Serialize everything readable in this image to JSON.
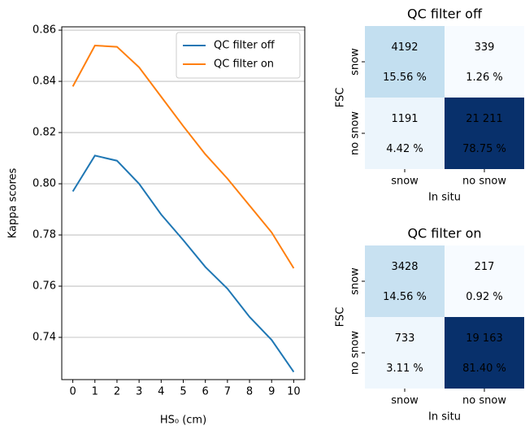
{
  "chart_data": [
    {
      "type": "line",
      "xlabel": "HS₀ (cm)",
      "ylabel": "Kappa scores",
      "x": [
        0,
        1,
        2,
        3,
        4,
        5,
        6,
        7,
        8,
        9,
        10
      ],
      "series": [
        {
          "name": "QC filter off",
          "color": "#1f77b4",
          "values": [
            0.797,
            0.811,
            0.809,
            0.8,
            0.788,
            0.778,
            0.7675,
            0.759,
            0.748,
            0.739,
            0.7265
          ]
        },
        {
          "name": "QC filter on",
          "color": "#ff7f0e",
          "values": [
            0.838,
            0.854,
            0.8535,
            0.8455,
            0.834,
            0.8225,
            0.8115,
            0.802,
            0.7915,
            0.781,
            0.767
          ]
        }
      ],
      "xlim": [
        -0.5,
        10.5
      ],
      "ylim": [
        0.7235,
        0.8613
      ],
      "xticks": [
        0,
        1,
        2,
        3,
        4,
        5,
        6,
        7,
        8,
        9,
        10
      ],
      "yticks": [
        0.74,
        0.76,
        0.78,
        {
          "value": 0.8,
          "label": "0.80"
        },
        0.82,
        0.84,
        0.86
      ],
      "grid": "y",
      "legend": "upper right"
    },
    {
      "type": "heatmap",
      "title": "QC filter off",
      "xlabel": "In situ",
      "ylabel": "FSC",
      "rows": [
        "snow",
        "no snow"
      ],
      "columns": [
        "snow",
        "no snow"
      ],
      "values": [
        [
          4192,
          339
        ],
        [
          1191,
          21211
        ]
      ],
      "value_labels": [
        [
          "4192",
          "339"
        ],
        [
          "1191",
          "21 211"
        ]
      ],
      "percents": [
        [
          15.56,
          1.26
        ],
        [
          4.42,
          78.75
        ]
      ],
      "percent_labels": [
        [
          "15.56 %",
          "1.26 %"
        ],
        [
          "4.42 %",
          "78.75 %"
        ]
      ],
      "colors": [
        "#f7fbff",
        "#6baed6",
        "#08306b"
      ]
    },
    {
      "type": "heatmap",
      "title": "QC filter on",
      "xlabel": "In situ",
      "ylabel": "FSC",
      "rows": [
        "snow",
        "no snow"
      ],
      "columns": [
        "snow",
        "no snow"
      ],
      "values": [
        [
          3428,
          217
        ],
        [
          733,
          19163
        ]
      ],
      "value_labels": [
        [
          "3428",
          "217"
        ],
        [
          "733",
          "19 163"
        ]
      ],
      "percents": [
        [
          14.56,
          0.92
        ],
        [
          3.11,
          81.4
        ]
      ],
      "percent_labels": [
        [
          "14.56 %",
          "0.92 %"
        ],
        [
          "3.11 %",
          "81.40 %"
        ]
      ],
      "colors": [
        "#f7fbff",
        "#6baed6",
        "#08306b"
      ]
    }
  ]
}
